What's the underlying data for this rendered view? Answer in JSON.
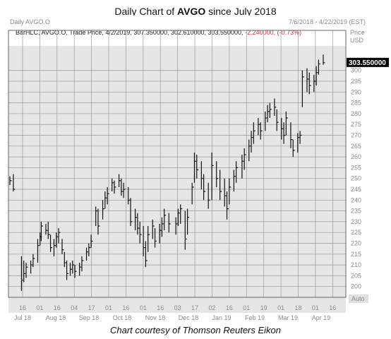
{
  "title": {
    "prefix": "Daily Chart of ",
    "ticker": "AVGO",
    "suffix": " since July 2018"
  },
  "caption": "Chart courtesy of Thomson Reuters Eikon",
  "header": {
    "symbol": "Daily AVGO.O",
    "date_range": "7/6/2018 - 4/22/2019 (EST)",
    "price_header": "Price",
    "currency": "USD",
    "info_line": "BarHLC, AVGO.O, Trade Price, 4/2/2019, 307.350000, 302.610000, 303.550000,",
    "change_abs": "-2.240000,",
    "change_pct": "(-0.73%)",
    "auto_label": "Auto"
  },
  "colors": {
    "bars": "#111111",
    "grid": "#9a9a9a",
    "label_bg": "#000000",
    "label_fg": "#ffffff",
    "negative": "#d03030"
  },
  "chart_data": {
    "type": "bar",
    "style": "HLC bars",
    "ylim": [
      195,
      312
    ],
    "y_ticks": [
      200,
      205,
      210,
      215,
      220,
      225,
      230,
      235,
      240,
      245,
      250,
      255,
      260,
      265,
      270,
      275,
      280,
      285,
      290,
      295,
      300
    ],
    "last_value": 303.55,
    "last_value_label": "303.550000",
    "x_tick_labels": [
      "16",
      "01",
      "16",
      "04",
      "17",
      "01",
      "16",
      "01",
      "16",
      "03",
      "17",
      "02",
      "16",
      "01",
      "19",
      "01",
      "18",
      "01",
      "16"
    ],
    "x_month_labels": [
      "Jul 18",
      "Aug 18",
      "Sep 18",
      "Oct 18",
      "Nov 18",
      "Dec 18",
      "Jan 19",
      "Feb 19",
      "Mar 19",
      "Apr 19"
    ],
    "grid": true,
    "bars": [
      {
        "date": "2018-07-06",
        "high": 251,
        "low": 247,
        "close": 249
      },
      {
        "date": "2018-07-09",
        "high": 252,
        "low": 244,
        "close": 245
      },
      {
        "date": "2018-07-16",
        "high": 214,
        "low": 198,
        "close": 203
      },
      {
        "date": "2018-07-18",
        "high": 212,
        "low": 202,
        "close": 206
      },
      {
        "date": "2018-07-20",
        "high": 211,
        "low": 204,
        "close": 209
      },
      {
        "date": "2018-07-24",
        "high": 212,
        "low": 206,
        "close": 210
      },
      {
        "date": "2018-07-26",
        "high": 215,
        "low": 209,
        "close": 213
      },
      {
        "date": "2018-07-30",
        "high": 222,
        "low": 211,
        "close": 219
      },
      {
        "date": "2018-08-01",
        "high": 225,
        "low": 219,
        "close": 223
      },
      {
        "date": "2018-08-02",
        "high": 230,
        "low": 221,
        "close": 228
      },
      {
        "date": "2018-08-06",
        "high": 229,
        "low": 224,
        "close": 226
      },
      {
        "date": "2018-08-08",
        "high": 230,
        "low": 222,
        "close": 224
      },
      {
        "date": "2018-08-10",
        "high": 224,
        "low": 216,
        "close": 218
      },
      {
        "date": "2018-08-13",
        "high": 222,
        "low": 214,
        "close": 219
      },
      {
        "date": "2018-08-15",
        "high": 225,
        "low": 218,
        "close": 223
      },
      {
        "date": "2018-08-17",
        "high": 227,
        "low": 220,
        "close": 225
      },
      {
        "date": "2018-08-20",
        "high": 222,
        "low": 215,
        "close": 217
      },
      {
        "date": "2018-08-22",
        "high": 216,
        "low": 209,
        "close": 211
      },
      {
        "date": "2018-08-24",
        "high": 212,
        "low": 203,
        "close": 206
      },
      {
        "date": "2018-08-27",
        "high": 211,
        "low": 205,
        "close": 208
      },
      {
        "date": "2018-08-29",
        "high": 212,
        "low": 206,
        "close": 210
      },
      {
        "date": "2018-08-31",
        "high": 210,
        "low": 204,
        "close": 207
      },
      {
        "date": "2018-09-04",
        "high": 211,
        "low": 205,
        "close": 209
      },
      {
        "date": "2018-09-06",
        "high": 214,
        "low": 207,
        "close": 212
      },
      {
        "date": "2018-09-10",
        "high": 218,
        "low": 212,
        "close": 216
      },
      {
        "date": "2018-09-12",
        "high": 220,
        "low": 214,
        "close": 218
      },
      {
        "date": "2018-09-14",
        "high": 224,
        "low": 218,
        "close": 221
      },
      {
        "date": "2018-09-18",
        "high": 237,
        "low": 228,
        "close": 235
      },
      {
        "date": "2018-09-20",
        "high": 236,
        "low": 224,
        "close": 228
      },
      {
        "date": "2018-09-24",
        "high": 240,
        "low": 231,
        "close": 236
      },
      {
        "date": "2018-09-26",
        "high": 244,
        "low": 236,
        "close": 241
      },
      {
        "date": "2018-09-28",
        "high": 246,
        "low": 238,
        "close": 243
      },
      {
        "date": "2018-10-02",
        "high": 250,
        "low": 244,
        "close": 248
      },
      {
        "date": "2018-10-04",
        "high": 249,
        "low": 243,
        "close": 246
      },
      {
        "date": "2018-10-08",
        "high": 252,
        "low": 246,
        "close": 249
      },
      {
        "date": "2018-10-10",
        "high": 250,
        "low": 242,
        "close": 244
      },
      {
        "date": "2018-10-12",
        "high": 248,
        "low": 241,
        "close": 245
      },
      {
        "date": "2018-10-16",
        "high": 246,
        "low": 238,
        "close": 240
      },
      {
        "date": "2018-10-18",
        "high": 241,
        "low": 228,
        "close": 230
      },
      {
        "date": "2018-10-22",
        "high": 236,
        "low": 226,
        "close": 232
      },
      {
        "date": "2018-10-24",
        "high": 234,
        "low": 224,
        "close": 227
      },
      {
        "date": "2018-10-26",
        "high": 230,
        "low": 220,
        "close": 224
      },
      {
        "date": "2018-10-29",
        "high": 228,
        "low": 214,
        "close": 218
      },
      {
        "date": "2018-10-31",
        "high": 221,
        "low": 209,
        "close": 212
      },
      {
        "date": "2018-11-02",
        "high": 228,
        "low": 216,
        "close": 224
      },
      {
        "date": "2018-11-06",
        "high": 231,
        "low": 222,
        "close": 228
      },
      {
        "date": "2018-11-08",
        "high": 227,
        "low": 218,
        "close": 221
      },
      {
        "date": "2018-11-12",
        "high": 229,
        "low": 220,
        "close": 226
      },
      {
        "date": "2018-11-14",
        "high": 232,
        "low": 223,
        "close": 229
      },
      {
        "date": "2018-11-16",
        "high": 236,
        "low": 226,
        "close": 233
      },
      {
        "date": "2018-11-20",
        "high": 234,
        "low": 225,
        "close": 229
      },
      {
        "date": "2018-11-26",
        "high": 232,
        "low": 224,
        "close": 229
      },
      {
        "date": "2018-11-28",
        "high": 236,
        "low": 228,
        "close": 234
      },
      {
        "date": "2018-11-30",
        "high": 238,
        "low": 229,
        "close": 236
      },
      {
        "date": "2018-12-04",
        "high": 235,
        "low": 217,
        "close": 222
      },
      {
        "date": "2018-12-06",
        "high": 236,
        "low": 224,
        "close": 232
      },
      {
        "date": "2018-12-10",
        "high": 248,
        "low": 238,
        "close": 246
      },
      {
        "date": "2018-12-12",
        "high": 262,
        "low": 248,
        "close": 258
      },
      {
        "date": "2018-12-14",
        "high": 261,
        "low": 250,
        "close": 254
      },
      {
        "date": "2018-12-18",
        "high": 258,
        "low": 245,
        "close": 250
      },
      {
        "date": "2018-12-20",
        "high": 252,
        "low": 240,
        "close": 244
      },
      {
        "date": "2018-12-24",
        "high": 248,
        "low": 236,
        "close": 240
      },
      {
        "date": "2018-12-27",
        "high": 262,
        "low": 240,
        "close": 256
      },
      {
        "date": "2018-12-31",
        "high": 258,
        "low": 246,
        "close": 250
      },
      {
        "date": "2019-01-03",
        "high": 254,
        "low": 240,
        "close": 244
      },
      {
        "date": "2019-01-07",
        "high": 250,
        "low": 237,
        "close": 242
      },
      {
        "date": "2019-01-09",
        "high": 244,
        "low": 231,
        "close": 236
      },
      {
        "date": "2019-01-11",
        "high": 250,
        "low": 238,
        "close": 246
      },
      {
        "date": "2019-01-15",
        "high": 254,
        "low": 244,
        "close": 251
      },
      {
        "date": "2019-01-17",
        "high": 258,
        "low": 248,
        "close": 255
      },
      {
        "date": "2019-01-22",
        "high": 261,
        "low": 250,
        "close": 258
      },
      {
        "date": "2019-01-24",
        "high": 264,
        "low": 254,
        "close": 261
      },
      {
        "date": "2019-01-28",
        "high": 268,
        "low": 258,
        "close": 265
      },
      {
        "date": "2019-01-30",
        "high": 272,
        "low": 262,
        "close": 269
      },
      {
        "date": "2019-02-01",
        "high": 276,
        "low": 266,
        "close": 272
      },
      {
        "date": "2019-02-05",
        "high": 278,
        "low": 270,
        "close": 275
      },
      {
        "date": "2019-02-07",
        "high": 276,
        "low": 268,
        "close": 272
      },
      {
        "date": "2019-02-11",
        "high": 281,
        "low": 272,
        "close": 278
      },
      {
        "date": "2019-02-13",
        "high": 284,
        "low": 276,
        "close": 281
      },
      {
        "date": "2019-02-15",
        "high": 285,
        "low": 278,
        "close": 282
      },
      {
        "date": "2019-02-19",
        "high": 287,
        "low": 279,
        "close": 283
      },
      {
        "date": "2019-02-21",
        "high": 282,
        "low": 272,
        "close": 276
      },
      {
        "date": "2019-02-25",
        "high": 278,
        "low": 268,
        "close": 273
      },
      {
        "date": "2019-02-27",
        "high": 276,
        "low": 266,
        "close": 270
      },
      {
        "date": "2019-03-01",
        "high": 281,
        "low": 270,
        "close": 278
      },
      {
        "date": "2019-03-05",
        "high": 276,
        "low": 264,
        "close": 268
      },
      {
        "date": "2019-03-07",
        "high": 268,
        "low": 260,
        "close": 263
      },
      {
        "date": "2019-03-11",
        "high": 271,
        "low": 262,
        "close": 269
      },
      {
        "date": "2019-03-13",
        "high": 272,
        "low": 266,
        "close": 270
      },
      {
        "date": "2019-03-15",
        "high": 300,
        "low": 283,
        "close": 297
      },
      {
        "date": "2019-03-19",
        "high": 301,
        "low": 290,
        "close": 296
      },
      {
        "date": "2019-03-21",
        "high": 299,
        "low": 289,
        "close": 293
      },
      {
        "date": "2019-03-25",
        "high": 298,
        "low": 290,
        "close": 295
      },
      {
        "date": "2019-03-27",
        "high": 302,
        "low": 293,
        "close": 299
      },
      {
        "date": "2019-03-29",
        "high": 305,
        "low": 298,
        "close": 303
      },
      {
        "date": "2019-04-02",
        "high": 307.35,
        "low": 302.61,
        "close": 303.55
      }
    ]
  }
}
